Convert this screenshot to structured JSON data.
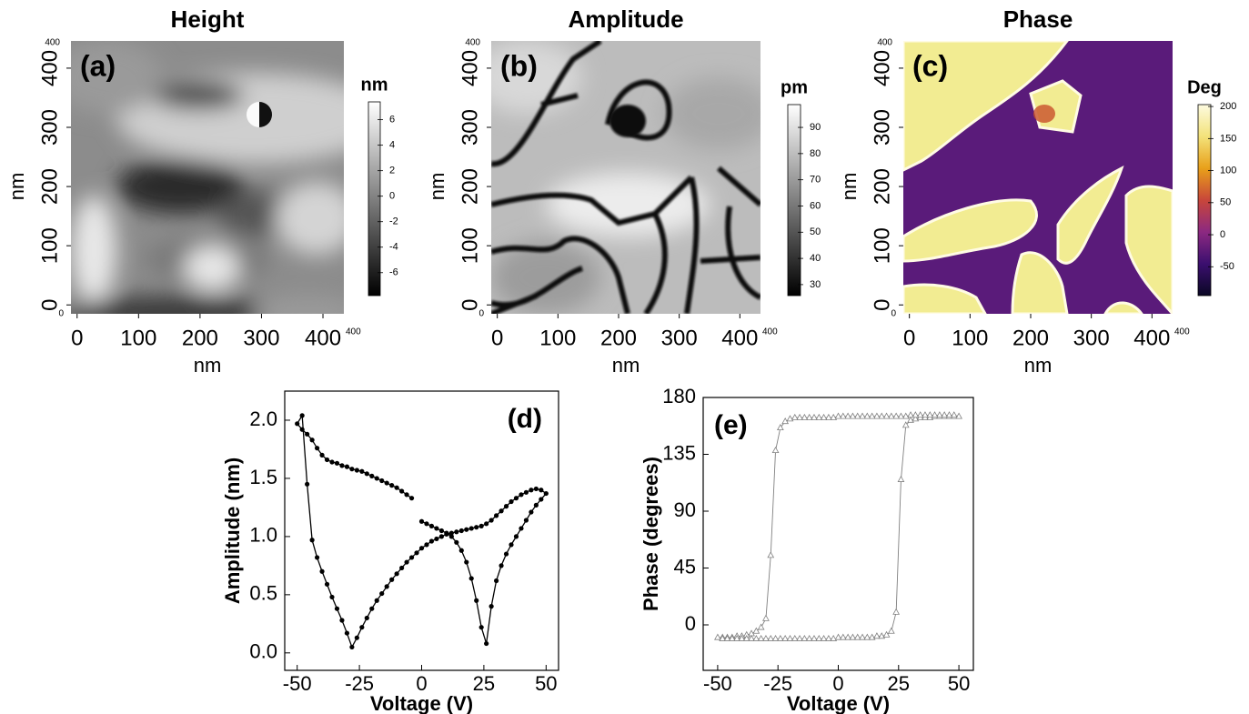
{
  "chart_data": [
    {
      "type": "image",
      "title": "Height",
      "panel_label": "(a)",
      "xlabel": "nm",
      "ylabel": "nm",
      "xlim": [
        -10,
        434
      ],
      "ylim": [
        -15,
        446
      ],
      "xticks": [
        0,
        100,
        200,
        300,
        400
      ],
      "yticks": [
        0,
        100,
        200,
        300,
        400
      ],
      "scan_labels": {
        "y_top": 400,
        "origin": 0,
        "x_right": 400
      },
      "colorbar": {
        "label": "nm",
        "lim": [
          -7.8,
          7.4
        ],
        "ticks": [
          -6,
          -4,
          -2,
          0,
          2,
          4,
          6
        ],
        "colors": [
          "#000000",
          "#ffffff"
        ]
      }
    },
    {
      "type": "image",
      "title": "Amplitude",
      "panel_label": "(b)",
      "xlabel": "nm",
      "ylabel": "nm",
      "xlim": [
        -10,
        434
      ],
      "ylim": [
        -15,
        446
      ],
      "xticks": [
        0,
        100,
        200,
        300,
        400
      ],
      "yticks": [
        0,
        100,
        200,
        300,
        400
      ],
      "scan_labels": {
        "y_top": 400,
        "origin": 0,
        "x_right": 400
      },
      "colorbar": {
        "label": "pm",
        "lim": [
          25.8,
          98.7
        ],
        "ticks": [
          30,
          40,
          50,
          60,
          70,
          80,
          90
        ],
        "colors": [
          "#000000",
          "#ffffff"
        ]
      }
    },
    {
      "type": "image",
      "title": "Phase",
      "panel_label": "(c)",
      "xlabel": "nm",
      "ylabel": "nm",
      "xlim": [
        -10,
        434
      ],
      "ylim": [
        -15,
        446
      ],
      "xticks": [
        0,
        100,
        200,
        300,
        400
      ],
      "yticks": [
        0,
        100,
        200,
        300,
        400
      ],
      "scan_labels": {
        "y_top": 400,
        "origin": 0,
        "x_right": 400
      },
      "colorbar": {
        "label": "Deg",
        "lim": [
          -95,
          203
        ],
        "ticks": [
          -50,
          0,
          50,
          100,
          150,
          200
        ],
        "colors": [
          "#0a0724",
          "#3b0f6f",
          "#8c2981",
          "#c8463a",
          "#e8a01a",
          "#f3e27a",
          "#fdfbe0"
        ]
      }
    },
    {
      "type": "line",
      "panel_label": "(d)",
      "xlabel": "Voltage (V)",
      "ylabel": "Amplitude (nm)",
      "color": "#000000",
      "marker": "circle",
      "xlim": [
        -55,
        55
      ],
      "ylim": [
        -0.15,
        2.25
      ],
      "xticks": [
        -50,
        -25,
        0,
        25,
        50
      ],
      "yticks": [
        {
          "value": 0,
          "label": "0.0"
        },
        0.5,
        {
          "value": 1,
          "label": "1.0"
        },
        1.5,
        {
          "value": 2,
          "label": "2.0"
        }
      ],
      "x": [
        0,
        2,
        4,
        6,
        8,
        10,
        12,
        14,
        16,
        18,
        20,
        22,
        24,
        26,
        28,
        30,
        32,
        34,
        36,
        38,
        40,
        42,
        44,
        46,
        48,
        50,
        48,
        46,
        44,
        42,
        40,
        38,
        36,
        34,
        32,
        30,
        28,
        26,
        24,
        22,
        20,
        18,
        16,
        14,
        12,
        10,
        8,
        6,
        4,
        2,
        0,
        -2,
        -4,
        -6,
        -8,
        -10,
        -12,
        -14,
        -16,
        -18,
        -20,
        -22,
        -24,
        -26,
        -28,
        -30,
        -32,
        -34,
        -36,
        -38,
        -40,
        -42,
        -44,
        -46,
        -48,
        -50,
        -48,
        -46,
        -44,
        -42,
        -40,
        -38,
        -36,
        -34,
        -32,
        -30,
        -28,
        -26,
        -24,
        -22,
        -20,
        -18,
        -16,
        -14,
        -12,
        -10,
        -8,
        -6,
        -4
      ],
      "values": [
        1.13,
        1.11,
        1.09,
        1.07,
        1.05,
        1.03,
        1.0,
        0.95,
        0.88,
        0.78,
        0.64,
        0.45,
        0.22,
        0.08,
        0.4,
        0.62,
        0.75,
        0.85,
        0.93,
        1.0,
        1.07,
        1.14,
        1.21,
        1.27,
        1.32,
        1.37,
        1.4,
        1.41,
        1.4,
        1.38,
        1.36,
        1.33,
        1.3,
        1.26,
        1.22,
        1.18,
        1.14,
        1.11,
        1.09,
        1.08,
        1.07,
        1.06,
        1.05,
        1.04,
        1.03,
        1.02,
        1.0,
        0.98,
        0.96,
        0.93,
        0.9,
        0.86,
        0.82,
        0.78,
        0.73,
        0.68,
        0.63,
        0.57,
        0.51,
        0.45,
        0.38,
        0.3,
        0.22,
        0.13,
        0.05,
        0.17,
        0.28,
        0.38,
        0.48,
        0.59,
        0.7,
        0.82,
        0.97,
        1.45,
        2.04,
        1.97,
        1.92,
        1.88,
        1.83,
        1.76,
        1.7,
        1.66,
        1.64,
        1.63,
        1.61,
        1.6,
        1.58,
        1.57,
        1.56,
        1.54,
        1.52,
        1.5,
        1.48,
        1.46,
        1.44,
        1.42,
        1.39,
        1.36,
        1.33
      ]
    },
    {
      "type": "line",
      "panel_label": "(e)",
      "xlabel": "Voltage (V)",
      "ylabel": "Phase (degrees)",
      "color": "#808080",
      "marker": "triangle",
      "xlim": [
        -56,
        56
      ],
      "ylim": [
        -36,
        180
      ],
      "xticks": [
        -50,
        -25,
        0,
        25,
        50
      ],
      "yticks": [
        0,
        45,
        90,
        135,
        180
      ],
      "x": [
        0,
        2,
        4,
        6,
        8,
        10,
        12,
        14,
        16,
        18,
        20,
        22,
        24,
        26,
        28,
        30,
        32,
        34,
        36,
        38,
        40,
        42,
        44,
        46,
        48,
        50,
        48,
        46,
        44,
        42,
        40,
        38,
        36,
        34,
        32,
        30,
        28,
        26,
        24,
        22,
        20,
        18,
        16,
        14,
        12,
        10,
        8,
        6,
        4,
        2,
        0,
        -2,
        -4,
        -6,
        -8,
        -10,
        -12,
        -14,
        -16,
        -18,
        -20,
        -22,
        -24,
        -26,
        -28,
        -30,
        -32,
        -34,
        -36,
        -38,
        -40,
        -42,
        -44,
        -46,
        -48,
        -50,
        -48,
        -46,
        -44,
        -42,
        -40,
        -38,
        -36,
        -34,
        -32,
        -30,
        -28,
        -26,
        -24,
        -22,
        -20,
        -18,
        -16,
        -14,
        -12,
        -10,
        -8,
        -6,
        -4,
        -2
      ],
      "values": [
        -10,
        -10,
        -10,
        -10,
        -10,
        -10,
        -10,
        -10,
        -9,
        -9,
        -8,
        -5,
        10,
        115,
        158,
        162,
        163,
        164,
        164,
        164,
        165,
        165,
        165,
        165,
        165,
        165,
        166,
        166,
        166,
        166,
        166,
        166,
        166,
        166,
        166,
        166,
        165,
        165,
        165,
        165,
        165,
        165,
        165,
        165,
        165,
        165,
        165,
        165,
        165,
        165,
        165,
        164,
        164,
        164,
        164,
        164,
        164,
        164,
        164,
        164,
        163,
        161,
        156,
        138,
        55,
        5,
        -2,
        -5,
        -7,
        -8,
        -9,
        -9,
        -10,
        -10,
        -10,
        -10,
        -11,
        -11,
        -11,
        -11,
        -11,
        -11,
        -11,
        -11,
        -11,
        -11,
        -11,
        -11,
        -11,
        -11,
        -11,
        -11,
        -11,
        -11,
        -11,
        -11,
        -11,
        -11,
        -11,
        -11
      ]
    }
  ]
}
